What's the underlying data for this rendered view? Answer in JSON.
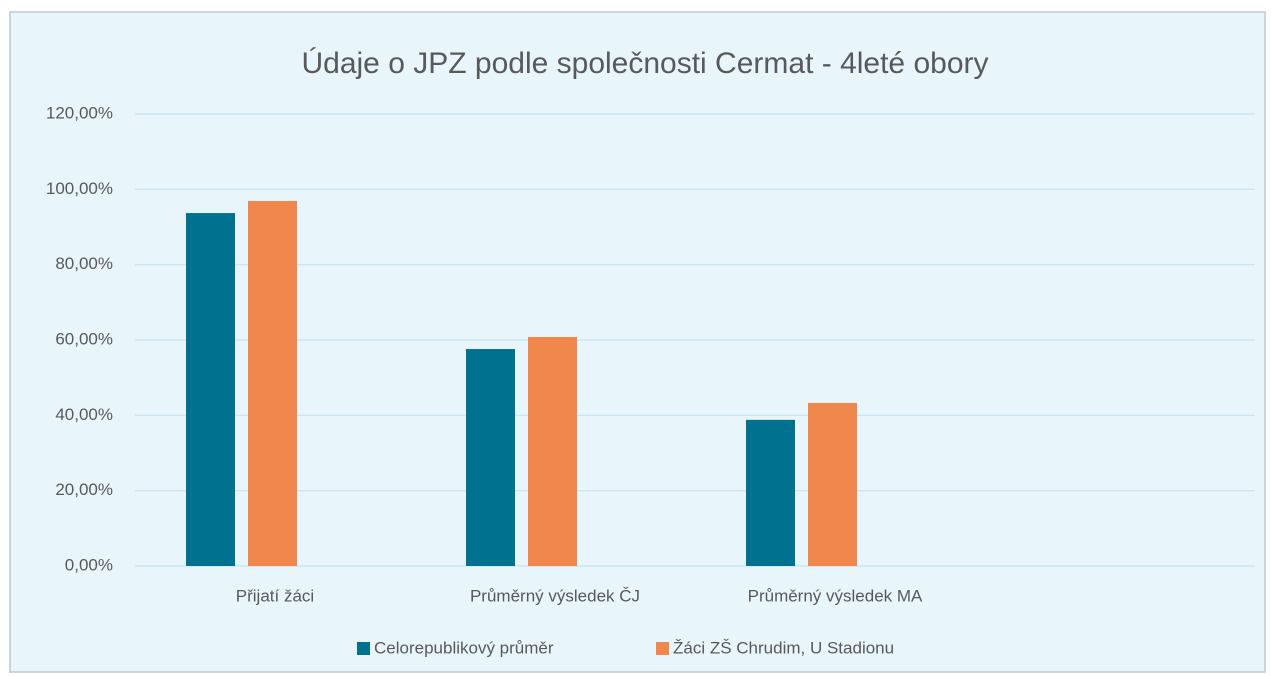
{
  "chart_data": {
    "type": "bar",
    "title": "Údaje o JPZ podle společnosti Cermat - 4leté obory",
    "categories": [
      "Přijatí žáci",
      "Průměrný výsledek ČJ",
      "Průměrný výsledek MA",
      null
    ],
    "series": [
      {
        "name": "Celorepublikový průměr",
        "color": "#00728f",
        "values": [
          93.7,
          57.6,
          38.8,
          null
        ]
      },
      {
        "name": "Žáci ZŠ Chrudim, U Stadionu",
        "color": "#f0884d",
        "values": [
          96.9,
          60.8,
          43.3,
          null
        ]
      }
    ],
    "ylim": [
      0,
      120
    ],
    "yticks": [
      {
        "value": 0,
        "label": "0,00%"
      },
      {
        "value": 20,
        "label": "20,00%"
      },
      {
        "value": 40,
        "label": "40,00%"
      },
      {
        "value": 60,
        "label": "60,00%"
      },
      {
        "value": 80,
        "label": "80,00%"
      },
      {
        "value": 100,
        "label": "100,00%"
      },
      {
        "value": 120,
        "label": "120,00%"
      }
    ],
    "grid": true,
    "legend": "bottom"
  }
}
